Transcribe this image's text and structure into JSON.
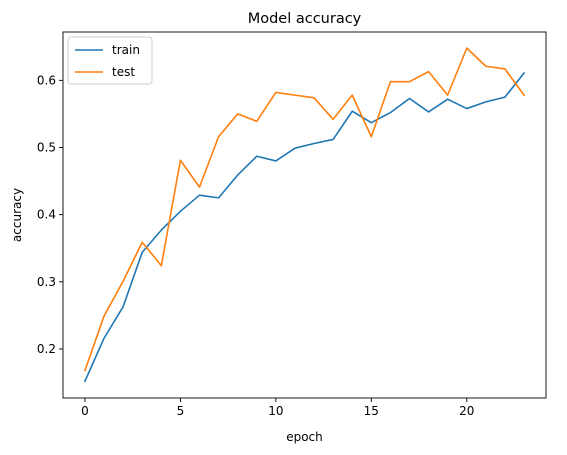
{
  "chart_data": {
    "type": "line",
    "title": "Model accuracy",
    "xlabel": "epoch",
    "ylabel": "accuracy",
    "xlim": [
      -1.15,
      24.15
    ],
    "ylim": [
      0.127,
      0.672
    ],
    "xticks": [
      0,
      5,
      10,
      15,
      20
    ],
    "yticks": [
      0.2,
      0.3,
      0.4,
      0.5,
      0.6
    ],
    "grid": false,
    "legend_position": "top-left",
    "x": [
      0,
      1,
      2,
      3,
      4,
      5,
      6,
      7,
      8,
      9,
      10,
      11,
      12,
      13,
      14,
      15,
      16,
      17,
      18,
      19,
      20,
      21,
      22,
      23
    ],
    "series": [
      {
        "name": "train",
        "color": "#1f77b4",
        "values": [
          0.152,
          0.216,
          0.263,
          0.344,
          0.377,
          0.405,
          0.429,
          0.425,
          0.459,
          0.487,
          0.48,
          0.499,
          0.506,
          0.512,
          0.554,
          0.537,
          0.552,
          0.573,
          0.553,
          0.572,
          0.558,
          0.568,
          0.575,
          0.611
        ]
      },
      {
        "name": "test",
        "color": "#ff7f0e",
        "values": [
          0.168,
          0.249,
          0.301,
          0.359,
          0.324,
          0.481,
          0.441,
          0.516,
          0.55,
          0.539,
          0.582,
          0.578,
          0.574,
          0.542,
          0.578,
          0.516,
          0.598,
          0.598,
          0.613,
          0.578,
          0.648,
          0.621,
          0.617,
          0.578
        ]
      }
    ]
  }
}
